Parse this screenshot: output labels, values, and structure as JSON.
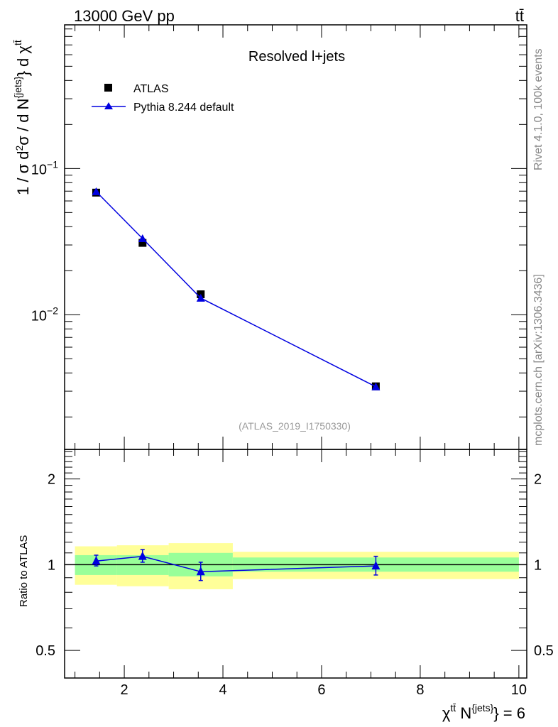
{
  "header": {
    "energy": "13000 GeV pp",
    "process": "tt̄"
  },
  "side": {
    "rivet": "Rivet 4.1.0,  100k events",
    "mcplots": "mcplots.cern.ch [arXiv:1306.3436]"
  },
  "chart_data": [
    {
      "type": "scatter",
      "title": "Resolved l+jets",
      "analysis": "(ATLAS_2019_I1750330)",
      "ylabel": "1 / σ d²σ / d N^{jets} d χ^{tt̄}",
      "xlabel": "χ^{tt̄} N^{jets} = 6",
      "xlim": [
        0.79,
        10.16
      ],
      "ylim": [
        0.0012,
        0.96
      ],
      "yscale": "log",
      "xticks": [
        "2",
        "4",
        "6",
        "8",
        "10"
      ],
      "ytick_labels": [
        {
          "value": 0.1,
          "base": "10",
          "exp": "−1"
        },
        {
          "value": 0.01,
          "base": "10",
          "exp": "−2"
        }
      ],
      "legend_position": "top-left",
      "series": [
        {
          "name": "ATLAS",
          "color": "#000000",
          "marker": "square",
          "x": [
            1.43,
            2.37,
            3.55,
            7.1
          ],
          "y": [
            0.0684,
            0.031,
            0.0138,
            0.00324
          ]
        },
        {
          "name": "Pythia 8.244 default",
          "color": "#0000e0",
          "marker": "triangle",
          "x": [
            1.43,
            2.37,
            3.55,
            7.1
          ],
          "y": [
            0.0695,
            0.0332,
            0.013,
            0.00322
          ]
        }
      ]
    },
    {
      "type": "line",
      "ylabel": "Ratio to ATLAS",
      "yscale": "log",
      "ylim": [
        0.4,
        2.54
      ],
      "yticks": [
        "0.5",
        "1",
        "2"
      ],
      "bins": [
        [
          1.0,
          1.85
        ],
        [
          1.85,
          2.9
        ],
        [
          2.9,
          4.2
        ],
        [
          4.2,
          10.0
        ]
      ],
      "band_stat": [
        [
          0.92,
          1.08
        ],
        [
          0.92,
          1.08
        ],
        [
          0.91,
          1.1
        ],
        [
          0.945,
          1.06
        ]
      ],
      "band_total": [
        [
          0.85,
          1.16
        ],
        [
          0.84,
          1.17
        ],
        [
          0.82,
          1.19
        ],
        [
          0.89,
          1.11
        ]
      ],
      "series": [
        {
          "name": "Pythia 8.244 default",
          "color": "#0000e0",
          "x": [
            1.43,
            2.37,
            3.55,
            7.1
          ],
          "y": [
            1.03,
            1.07,
            0.945,
            0.99
          ],
          "err_low": [
            0.99,
            1.02,
            0.88,
            0.92
          ],
          "err_high": [
            1.08,
            1.13,
            1.02,
            1.07
          ]
        }
      ]
    }
  ]
}
